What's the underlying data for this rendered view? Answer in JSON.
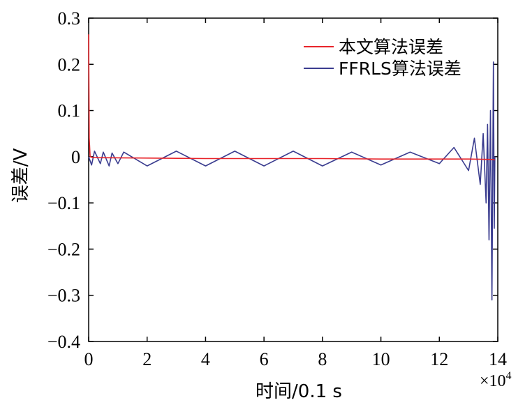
{
  "chart_data": {
    "type": "line",
    "xlabel": "时间/0.1 s",
    "ylabel": "误差/V",
    "x_multiplier": "×10",
    "x_multiplier_exp": "4",
    "xlim": [
      0,
      14
    ],
    "ylim": [
      -0.4,
      0.3
    ],
    "x_ticks": [
      0,
      2,
      4,
      6,
      8,
      10,
      12,
      14
    ],
    "x_tick_labels": [
      "0",
      "2",
      "4",
      "6",
      "8",
      "10",
      "12",
      "14"
    ],
    "y_ticks": [
      0.3,
      0.2,
      0.1,
      0,
      -0.1,
      -0.2,
      -0.3,
      -0.4
    ],
    "y_tick_labels": [
      "0.3",
      "0.2",
      "0.1",
      "0",
      "−0.1",
      "−0.2",
      "−0.3",
      "−0.4"
    ],
    "grid": false,
    "legend_position": "top-right",
    "series": [
      {
        "name": "本文算法误差",
        "color": "#e8242a",
        "points": [
          [
            0,
            0.265
          ],
          [
            0.02,
            0.04
          ],
          [
            0.05,
            0.0
          ],
          [
            0.15,
            -0.002
          ],
          [
            2,
            -0.003
          ],
          [
            4,
            -0.004
          ],
          [
            6,
            -0.004
          ],
          [
            8,
            -0.004
          ],
          [
            10,
            -0.005
          ],
          [
            12,
            -0.005
          ],
          [
            13,
            -0.005
          ],
          [
            13.8,
            -0.006
          ],
          [
            13.9,
            -0.007
          ]
        ]
      },
      {
        "name": "FFRLS算法误差",
        "color": "#3a3c8f",
        "points": [
          [
            0,
            0.0
          ],
          [
            0.1,
            -0.018
          ],
          [
            0.2,
            0.012
          ],
          [
            0.4,
            -0.015
          ],
          [
            0.5,
            0.01
          ],
          [
            0.7,
            -0.02
          ],
          [
            0.8,
            0.008
          ],
          [
            1.0,
            -0.015
          ],
          [
            1.2,
            0.01
          ],
          [
            2,
            -0.02
          ],
          [
            3,
            0.012
          ],
          [
            4,
            -0.02
          ],
          [
            5,
            0.012
          ],
          [
            6,
            -0.02
          ],
          [
            7,
            0.012
          ],
          [
            8,
            -0.02
          ],
          [
            9,
            0.01
          ],
          [
            10,
            -0.018
          ],
          [
            11,
            0.01
          ],
          [
            12,
            -0.015
          ],
          [
            12.5,
            0.02
          ],
          [
            13,
            -0.03
          ],
          [
            13.2,
            0.04
          ],
          [
            13.4,
            -0.06
          ],
          [
            13.5,
            0.05
          ],
          [
            13.6,
            -0.1
          ],
          [
            13.65,
            0.07
          ],
          [
            13.7,
            -0.18
          ],
          [
            13.75,
            0.1
          ],
          [
            13.8,
            -0.31
          ],
          [
            13.85,
            0.205
          ],
          [
            13.88,
            -0.155
          ],
          [
            13.9,
            0.0
          ]
        ]
      }
    ]
  }
}
